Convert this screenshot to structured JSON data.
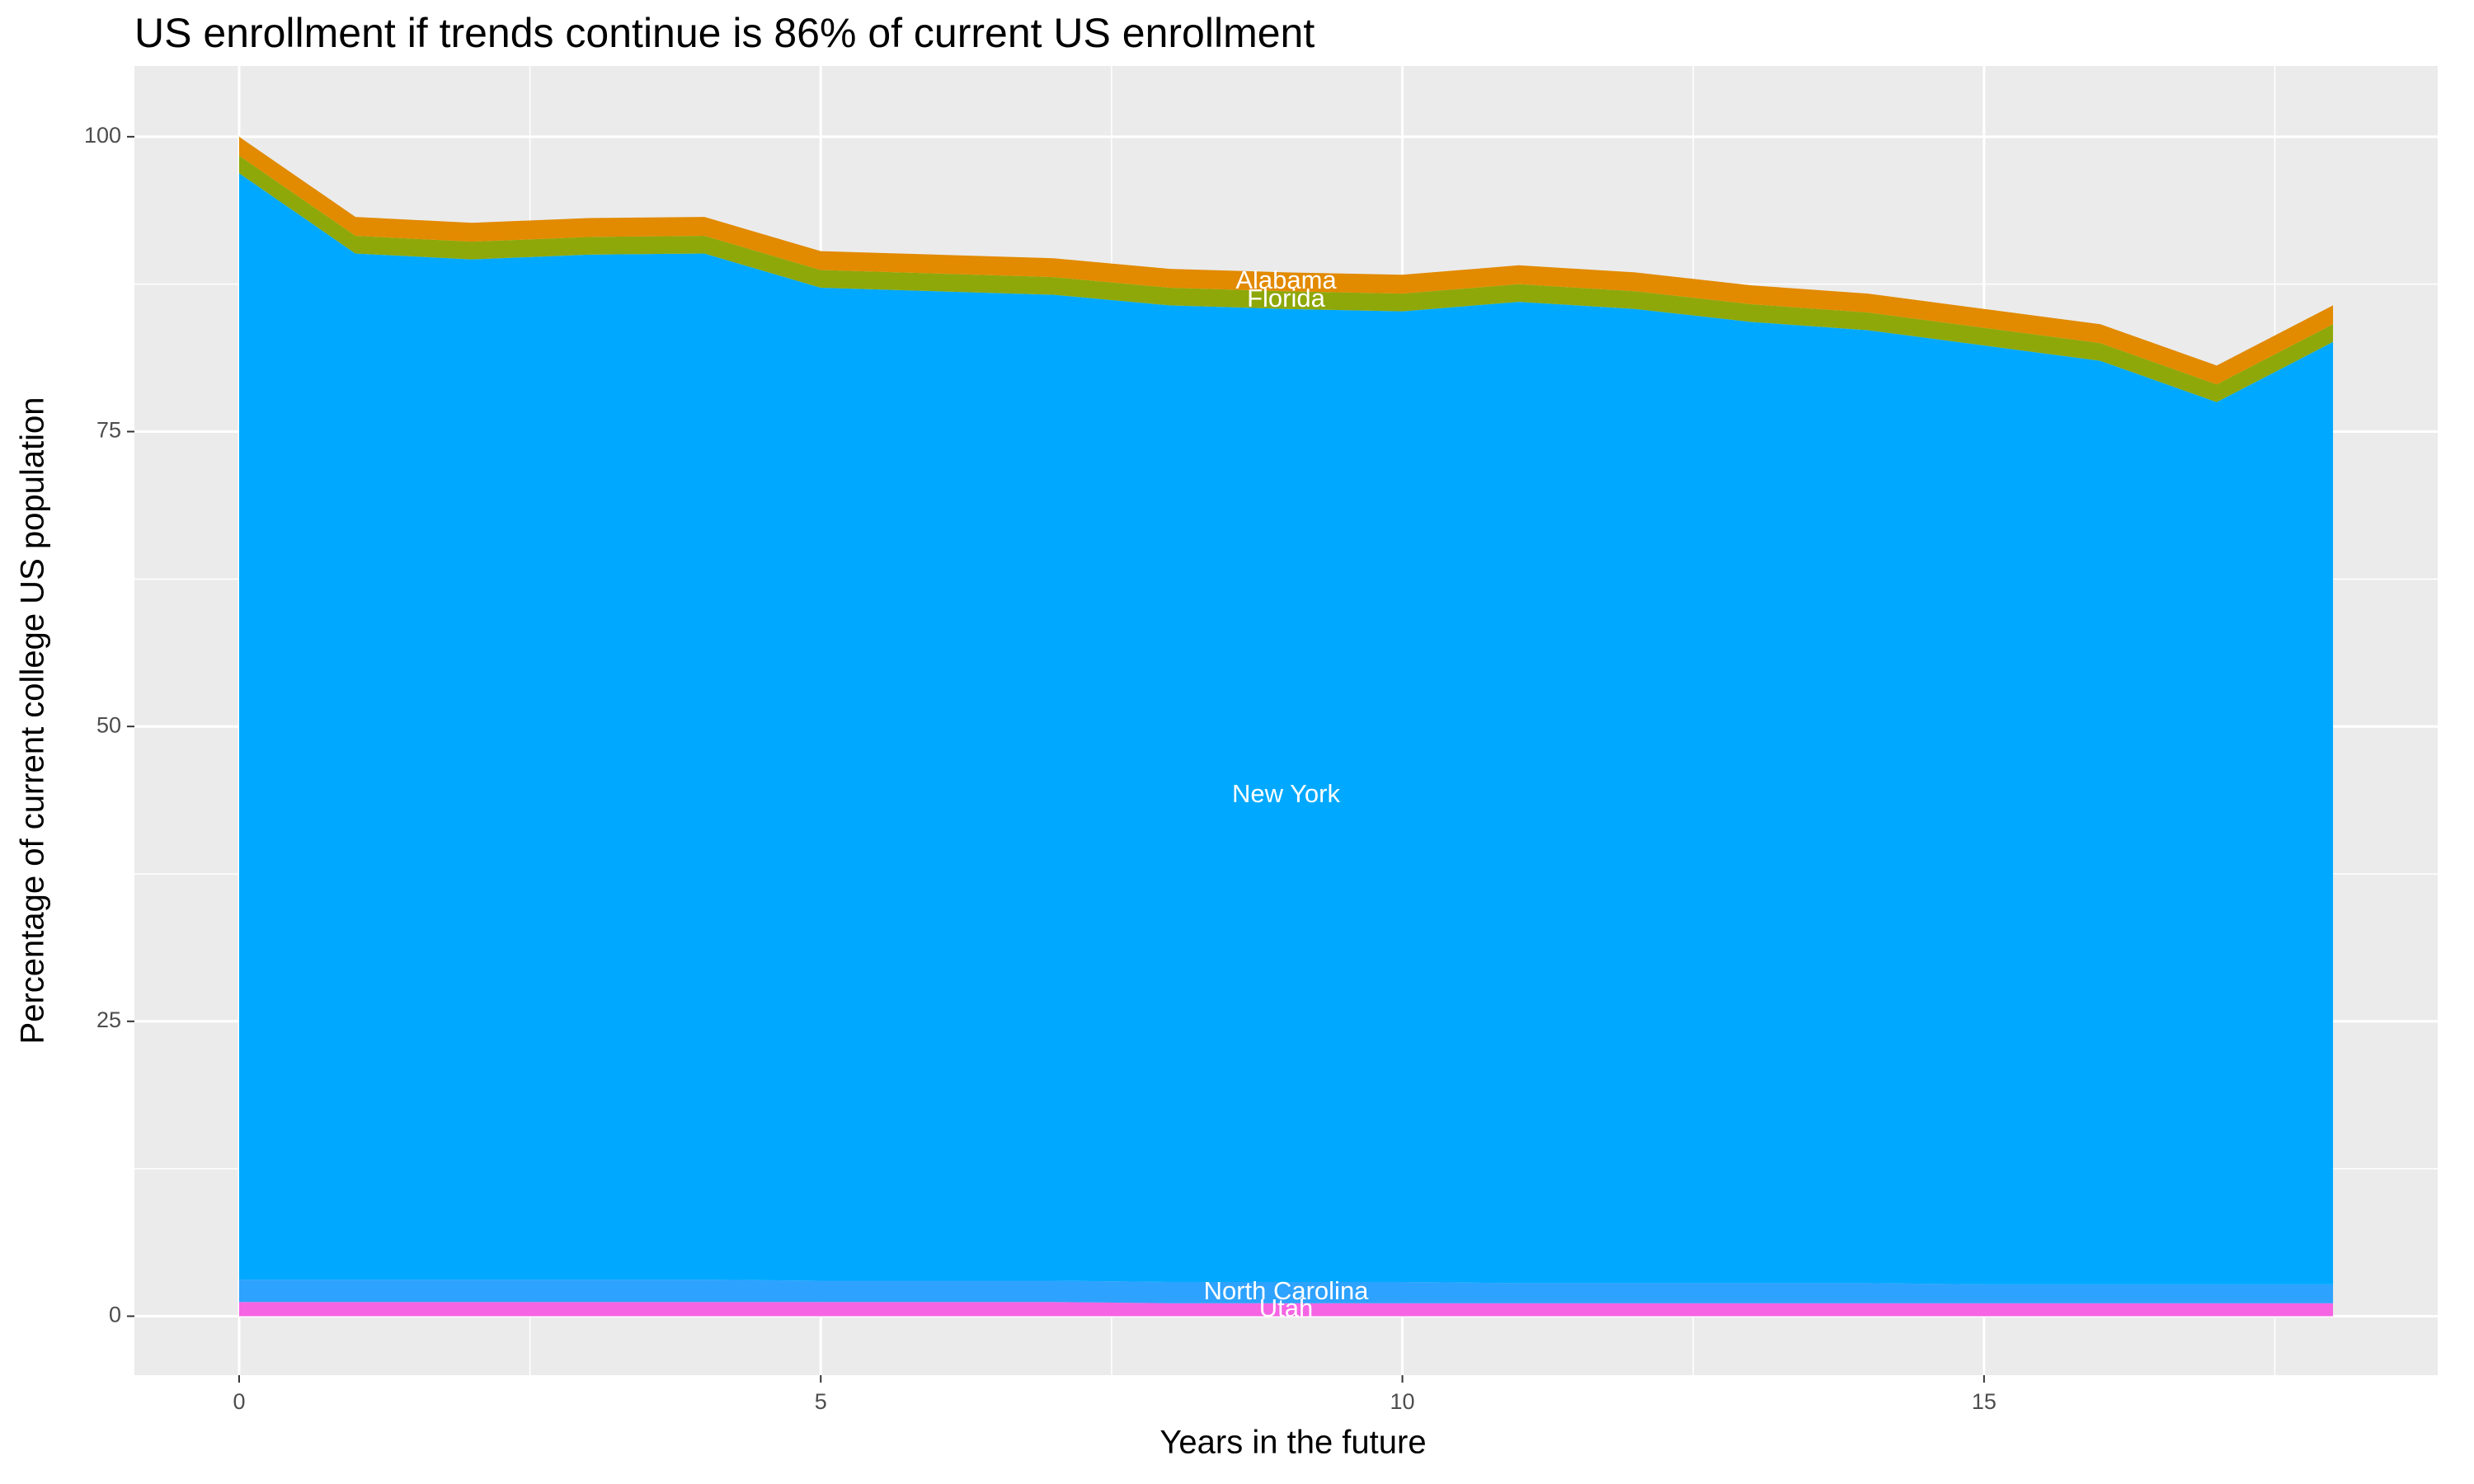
{
  "chart_data": {
    "type": "stacked_area",
    "title": "US enrollment if trends continue is 86% of current US enrollment",
    "x_label": "Years in the future",
    "y_label": "Percentage of current college US population",
    "x": [
      0,
      1,
      2,
      3,
      4,
      5,
      6,
      7,
      8,
      9,
      10,
      11,
      12,
      13,
      14,
      15,
      16,
      17,
      18
    ],
    "xlim": [
      -0.9,
      18.9
    ],
    "xticks": [
      0,
      5,
      10,
      15
    ],
    "ylim": [
      -5,
      106
    ],
    "yticks": [
      0,
      25,
      50,
      75,
      100
    ],
    "grid": true,
    "series": [
      {
        "name": "Utah",
        "color": "#f564e3",
        "values": [
          1.2,
          1.2,
          1.2,
          1.2,
          1.2,
          1.2,
          1.2,
          1.2,
          1.1,
          1.1,
          1.1,
          1.1,
          1.1,
          1.1,
          1.1,
          1.1,
          1.1,
          1.1,
          1.1
        ]
      },
      {
        "name": "North Carolina",
        "color": "#2ea2ff",
        "values": [
          1.9,
          1.9,
          1.9,
          1.9,
          1.9,
          1.8,
          1.8,
          1.8,
          1.8,
          1.8,
          1.8,
          1.7,
          1.7,
          1.7,
          1.7,
          1.6,
          1.6,
          1.6,
          1.6
        ]
      },
      {
        "name": "New York",
        "color": "#00a9ff",
        "values": [
          93.8,
          87.0,
          86.5,
          86.9,
          87.0,
          84.2,
          83.9,
          83.6,
          82.8,
          82.5,
          82.3,
          83.2,
          82.6,
          81.5,
          80.8,
          79.6,
          78.3,
          74.8,
          79.9
        ]
      },
      {
        "name": "Florida",
        "color": "#8ea80a",
        "values": [
          1.5,
          1.5,
          1.5,
          1.5,
          1.5,
          1.5,
          1.5,
          1.5,
          1.5,
          1.5,
          1.5,
          1.5,
          1.5,
          1.5,
          1.5,
          1.5,
          1.5,
          1.5,
          1.5
        ]
      },
      {
        "name": "Alabama",
        "color": "#e28a00",
        "values": [
          1.6,
          1.6,
          1.6,
          1.6,
          1.6,
          1.6,
          1.6,
          1.6,
          1.6,
          1.6,
          1.6,
          1.6,
          1.6,
          1.6,
          1.6,
          1.6,
          1.6,
          1.6,
          1.6
        ]
      }
    ]
  }
}
